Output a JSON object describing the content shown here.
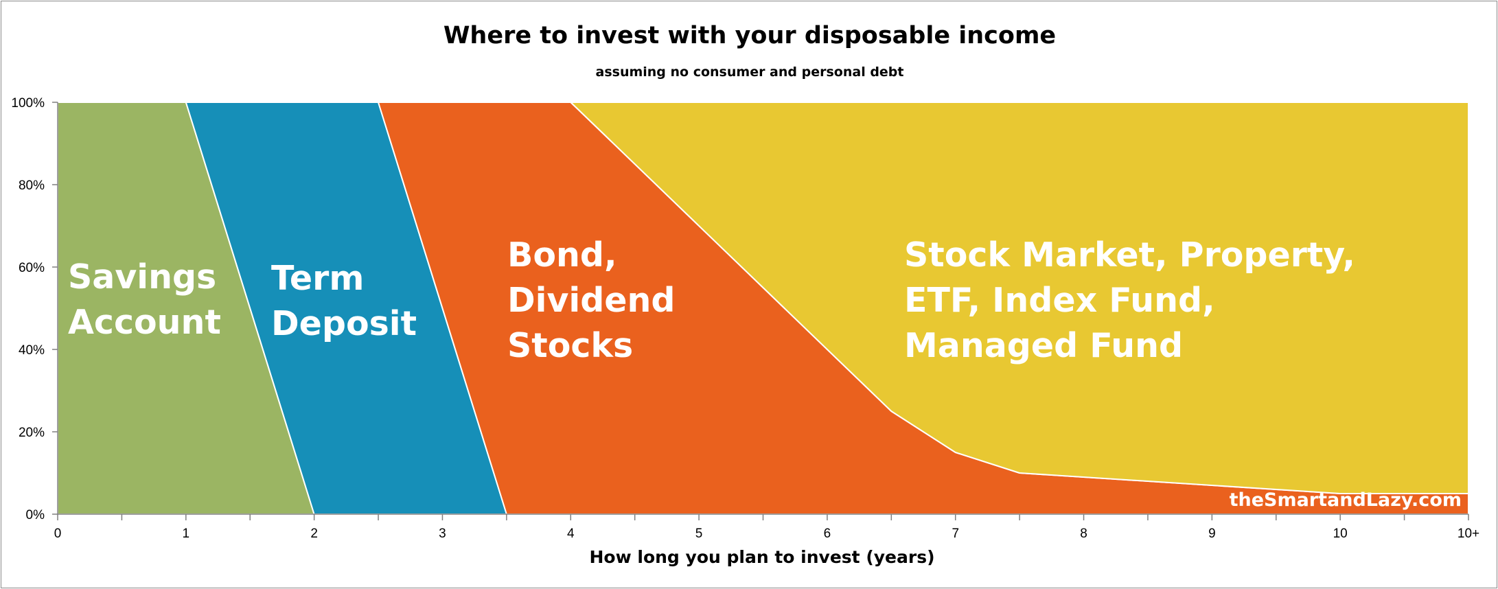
{
  "chart_data": {
    "type": "area",
    "stacked": "percent",
    "title": "Where to invest with your disposable income",
    "subtitle": "assuming no consumer and personal debt",
    "xlabel": "How long you plan to invest (years)",
    "ylabel": "",
    "x": [
      0,
      1,
      2,
      2.5,
      3.5,
      4,
      6.5,
      7,
      7.5,
      10,
      11
    ],
    "x_ticks": [
      {
        "value": 0,
        "label": "0"
      },
      {
        "value": 1,
        "label": "1"
      },
      {
        "value": 2,
        "label": "2"
      },
      {
        "value": 3,
        "label": "3"
      },
      {
        "value": 4,
        "label": "4"
      },
      {
        "value": 5,
        "label": "5"
      },
      {
        "value": 6,
        "label": "6"
      },
      {
        "value": 7,
        "label": "7"
      },
      {
        "value": 8,
        "label": "8"
      },
      {
        "value": 9,
        "label": "9"
      },
      {
        "value": 10,
        "label": "10"
      },
      {
        "value": 11,
        "label": "10+"
      }
    ],
    "y_ticks": [
      "0%",
      "20%",
      "40%",
      "60%",
      "80%",
      "100%"
    ],
    "ylim": [
      0,
      100
    ],
    "xlim": [
      0,
      11
    ],
    "grid": false,
    "legend": "none",
    "series": [
      {
        "name": "Savings Account",
        "label_lines": [
          "Savings",
          "Account"
        ],
        "color": "#9BB563",
        "values": [
          100,
          100,
          0,
          0,
          0,
          0,
          0,
          0,
          0,
          0,
          0
        ]
      },
      {
        "name": "Term Deposit",
        "label_lines": [
          "Term",
          "Deposit"
        ],
        "color": "#168FB8",
        "values": [
          0,
          0,
          100,
          100,
          0,
          0,
          0,
          0,
          0,
          0,
          0
        ]
      },
      {
        "name": "Bond, Dividend Stocks",
        "label_lines": [
          "Bond,",
          "Dividend",
          "Stocks"
        ],
        "color": "#EA611E",
        "values": [
          0,
          0,
          0,
          0,
          100,
          100,
          25,
          15,
          10,
          5,
          5
        ]
      },
      {
        "name": "Stock Market, Property, ETF, Index Fund, Managed Fund",
        "label_lines": [
          "Stock Market, Property,",
          "ETF, Index Fund,",
          "Managed Fund"
        ],
        "color": "#E8C832",
        "values": [
          0,
          0,
          0,
          0,
          0,
          0,
          75,
          85,
          90,
          95,
          95
        ]
      }
    ],
    "annotation": "theSmartandLazy.com"
  }
}
